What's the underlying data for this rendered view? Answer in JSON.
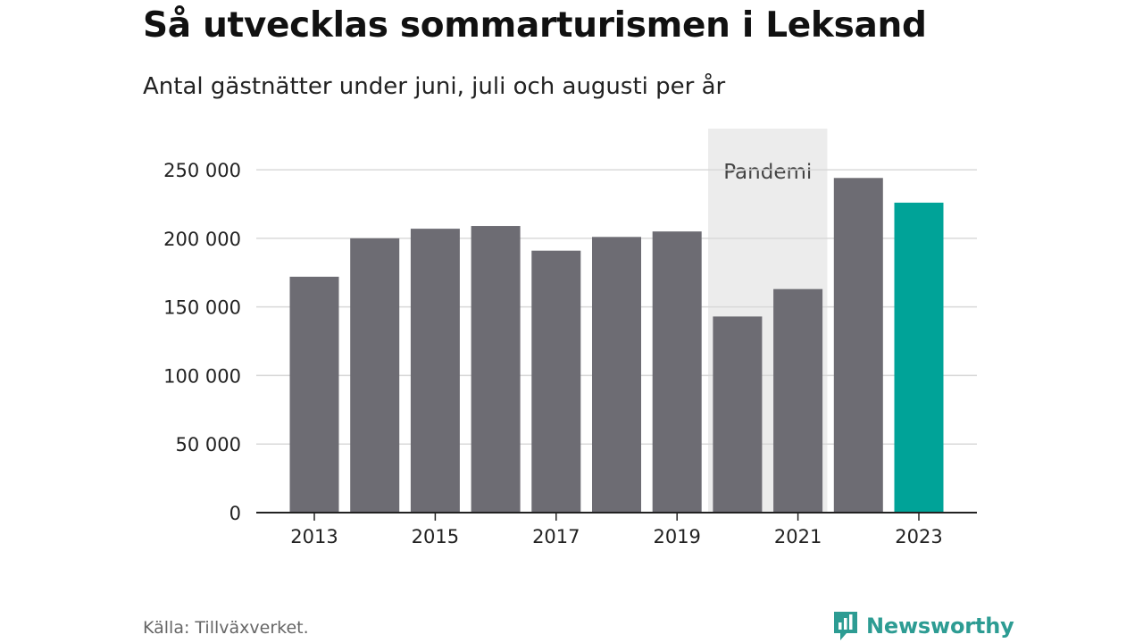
{
  "title": "Så utvecklas sommarturismen i Leksand",
  "subtitle": "Antal gästnätter under juni, juli och augusti per år",
  "source": "Källa: Tillväxverket.",
  "brand": {
    "name": "Newsworthy",
    "icon": "newsworthy-logo-icon",
    "color": "#2d9c93"
  },
  "colors": {
    "bar": "#6d6c73",
    "highlight": "#00a398",
    "shade": "#ececec",
    "grid": "#d9d9d9",
    "axis": "#222222"
  },
  "chart_data": {
    "type": "bar",
    "categories": [
      "2013",
      "2014",
      "2015",
      "2016",
      "2017",
      "2018",
      "2019",
      "2020",
      "2021",
      "2022",
      "2023"
    ],
    "values": [
      172000,
      200000,
      207000,
      209000,
      191000,
      201000,
      205000,
      143000,
      163000,
      244000,
      226000
    ],
    "highlight_category": "2023",
    "title": "Så utvecklas sommarturismen i Leksand",
    "subtitle": "Antal gästnätter under juni, juli och augusti per år",
    "xlabel": "",
    "ylabel": "",
    "ylim": [
      0,
      280000
    ],
    "yticks": [
      0,
      50000,
      100000,
      150000,
      200000,
      250000
    ],
    "ytick_labels": [
      "0",
      "50 000",
      "100 000",
      "150 000",
      "200 000",
      "250 000"
    ],
    "xtick_labels": [
      "2013",
      "2015",
      "2017",
      "2019",
      "2021",
      "2023"
    ],
    "annotations": [
      {
        "label": "Pandemi",
        "from": "2020",
        "to": "2021"
      }
    ],
    "grid": true,
    "legend": "none"
  }
}
